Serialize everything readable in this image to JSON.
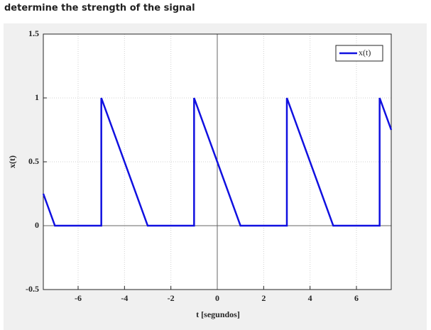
{
  "question": "determine the strength of the signal",
  "chart_data": {
    "type": "line",
    "x": [
      -7.5,
      -7,
      -5,
      -5,
      -3,
      -1,
      -1,
      1,
      3,
      3,
      5,
      7,
      7,
      7.5
    ],
    "series": [
      {
        "name": "x(t)",
        "color": "#1010e0",
        "values": [
          0.25,
          0,
          0,
          1,
          0,
          0,
          1,
          0,
          0,
          1,
          0,
          0,
          1,
          0.75
        ]
      }
    ],
    "xlabel": "t [segundos]",
    "ylabel": "x(t)",
    "xlim": [
      -7.5,
      7.5
    ],
    "ylim": [
      -0.5,
      1.5
    ],
    "xticks": [
      -6,
      -4,
      -2,
      0,
      2,
      4,
      6
    ],
    "yticks": [
      -0.5,
      0,
      0.5,
      1,
      1.5
    ],
    "grid": true,
    "legend": "upper right"
  }
}
